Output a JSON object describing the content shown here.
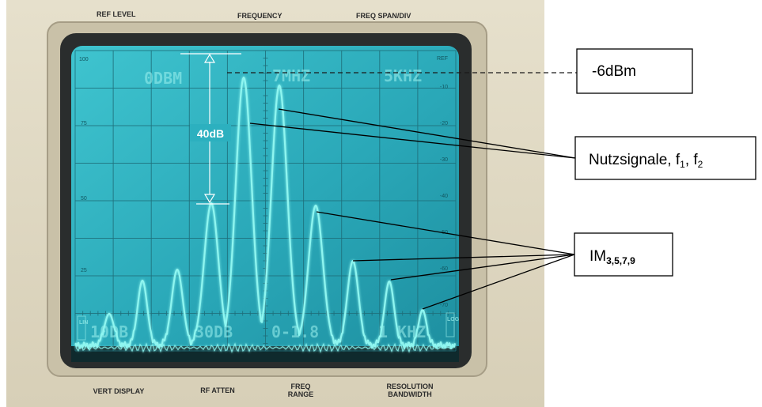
{
  "panel": {
    "top_labels": [
      "REF LEVEL",
      "FREQUENCY",
      "FREQ SPAN/DIV"
    ],
    "bottom_labels": [
      [
        "VERT DISPLAY"
      ],
      [
        "RF ATTEN"
      ],
      [
        "FREQ",
        "RANGE"
      ],
      [
        "RESOLUTION",
        "BANDWIDTH"
      ]
    ]
  },
  "screen": {
    "readout_top": [
      "0DBM",
      "7MHZ",
      "5KHZ"
    ],
    "readout_bottom": [
      "10DB",
      "30DB",
      "0-1.8",
      "1 KHZ"
    ],
    "left_scale": [
      "100",
      "75",
      "50",
      "25"
    ],
    "right_scale": [
      "REF",
      "-10",
      "-20",
      "-30",
      "-40",
      "-50",
      "-60",
      "-70"
    ],
    "lin_tag": "LIN",
    "log_tag": "LOG",
    "span_marker": "40dB",
    "trace_color": "#8ff6f0",
    "screen_color": "#2fb3c2"
  },
  "annotations": {
    "ref_label": "-6dBm",
    "signal_label": "Nutzsignale, f",
    "signal_sub1": "1",
    "signal_sep": ", f",
    "signal_sub2": "2",
    "im_label": "IM",
    "im_sub": "3,5,7,9"
  }
}
